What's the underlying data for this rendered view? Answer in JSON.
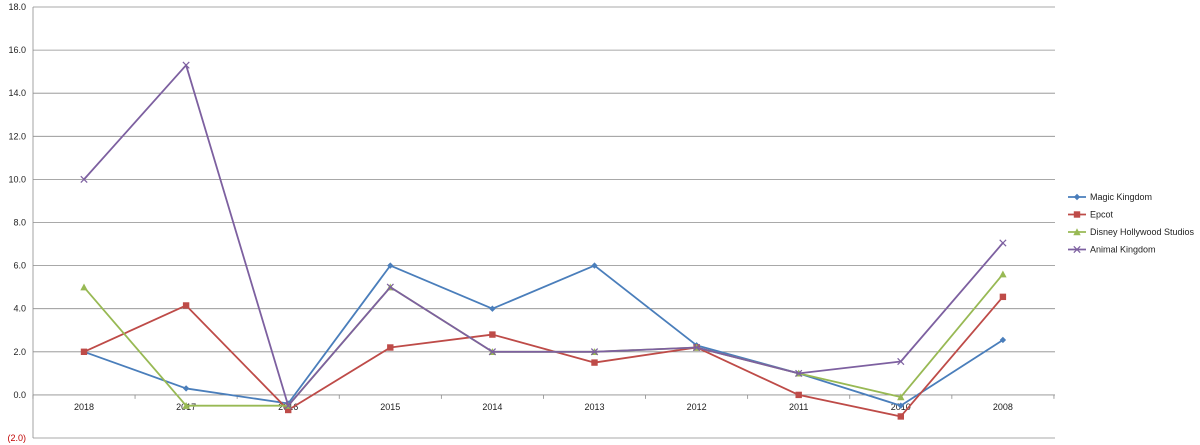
{
  "chart_data": {
    "type": "line",
    "categories": [
      "2018",
      "2017",
      "2016",
      "2015",
      "2014",
      "2013",
      "2012",
      "2011",
      "2010",
      "2008"
    ],
    "ylim": [
      -2,
      18
    ],
    "y_ticks": [
      {
        "value": -2,
        "label": "(2.0)"
      },
      {
        "value": 0,
        "label": "0.0"
      },
      {
        "value": 2,
        "label": "2.0"
      },
      {
        "value": 4,
        "label": "4.0"
      },
      {
        "value": 6,
        "label": "6.0"
      },
      {
        "value": 8,
        "label": "8.0"
      },
      {
        "value": 10,
        "label": "10.0"
      },
      {
        "value": 12,
        "label": "12.0"
      },
      {
        "value": 14,
        "label": "14.0"
      },
      {
        "value": 16,
        "label": "16.0"
      },
      {
        "value": 18,
        "label": "18.0"
      }
    ],
    "grid": true,
    "legend_position": "right",
    "series": [
      {
        "name": "Magic Kingdom",
        "color": "#4a7ebb",
        "marker": "diamond",
        "values": [
          2.0,
          0.3,
          -0.4,
          6.0,
          4.0,
          6.0,
          2.3,
          1.0,
          -0.5,
          2.55
        ]
      },
      {
        "name": "Epcot",
        "color": "#be4b48",
        "marker": "square",
        "values": [
          2.0,
          4.15,
          -0.7,
          2.2,
          2.8,
          1.5,
          2.2,
          0.0,
          -1.0,
          4.55
        ]
      },
      {
        "name": "Disney Hollywood Studios",
        "color": "#98b954",
        "marker": "triangle",
        "values": [
          5.0,
          -0.5,
          -0.5,
          5.0,
          2.0,
          2.0,
          2.2,
          1.0,
          -0.1,
          5.6
        ]
      },
      {
        "name": "Animal Kingdom",
        "color": "#7d60a0",
        "marker": "x",
        "values": [
          10.0,
          15.3,
          -0.5,
          5.0,
          2.0,
          2.0,
          2.2,
          1.0,
          1.55,
          7.05
        ]
      }
    ]
  }
}
